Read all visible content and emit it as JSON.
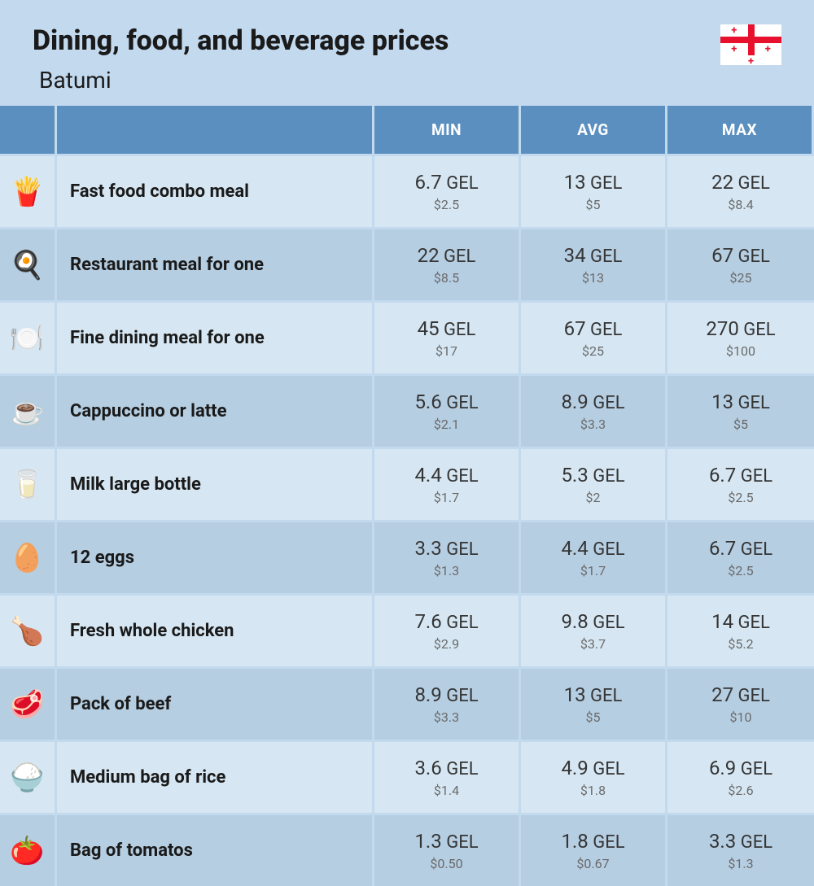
{
  "title": "Dining, food, and beverage prices",
  "location": "Batumi",
  "columns": {
    "c1": "MIN",
    "c2": "AVG",
    "c3": "MAX"
  },
  "currency": "GEL",
  "altCurrencyPrefix": "$",
  "colors": {
    "pageBg": "#c2d9ee",
    "headerBg": "#5a8fbf",
    "rowLight": "#d6e7f3",
    "rowDark": "#b6cee2",
    "borderColor": "#c2d9ee"
  },
  "rows": [
    {
      "icon": "🍟",
      "label": "Fast food combo meal",
      "min": {
        "p": "6.7",
        "s": "2.5"
      },
      "avg": {
        "p": "13",
        "s": "5"
      },
      "max": {
        "p": "22",
        "s": "8.4"
      }
    },
    {
      "icon": "🍳",
      "label": "Restaurant meal for one",
      "min": {
        "p": "22",
        "s": "8.5"
      },
      "avg": {
        "p": "34",
        "s": "13"
      },
      "max": {
        "p": "67",
        "s": "25"
      }
    },
    {
      "icon": "🍽️",
      "label": "Fine dining meal for one",
      "min": {
        "p": "45",
        "s": "17"
      },
      "avg": {
        "p": "67",
        "s": "25"
      },
      "max": {
        "p": "270",
        "s": "100"
      }
    },
    {
      "icon": "☕",
      "label": "Cappuccino or latte",
      "min": {
        "p": "5.6",
        "s": "2.1"
      },
      "avg": {
        "p": "8.9",
        "s": "3.3"
      },
      "max": {
        "p": "13",
        "s": "5"
      }
    },
    {
      "icon": "🥛",
      "label": "Milk large bottle",
      "min": {
        "p": "4.4",
        "s": "1.7"
      },
      "avg": {
        "p": "5.3",
        "s": "2"
      },
      "max": {
        "p": "6.7",
        "s": "2.5"
      }
    },
    {
      "icon": "🥚",
      "label": "12 eggs",
      "min": {
        "p": "3.3",
        "s": "1.3"
      },
      "avg": {
        "p": "4.4",
        "s": "1.7"
      },
      "max": {
        "p": "6.7",
        "s": "2.5"
      }
    },
    {
      "icon": "🍗",
      "label": "Fresh whole chicken",
      "min": {
        "p": "7.6",
        "s": "2.9"
      },
      "avg": {
        "p": "9.8",
        "s": "3.7"
      },
      "max": {
        "p": "14",
        "s": "5.2"
      }
    },
    {
      "icon": "🥩",
      "label": "Pack of beef",
      "min": {
        "p": "8.9",
        "s": "3.3"
      },
      "avg": {
        "p": "13",
        "s": "5"
      },
      "max": {
        "p": "27",
        "s": "10"
      }
    },
    {
      "icon": "🍚",
      "label": "Medium bag of rice",
      "min": {
        "p": "3.6",
        "s": "1.4"
      },
      "avg": {
        "p": "4.9",
        "s": "1.8"
      },
      "max": {
        "p": "6.9",
        "s": "2.6"
      }
    },
    {
      "icon": "🍅",
      "label": "Bag of tomatos",
      "min": {
        "p": "1.3",
        "s": "0.50"
      },
      "avg": {
        "p": "1.8",
        "s": "0.67"
      },
      "max": {
        "p": "3.3",
        "s": "1.3"
      }
    }
  ]
}
